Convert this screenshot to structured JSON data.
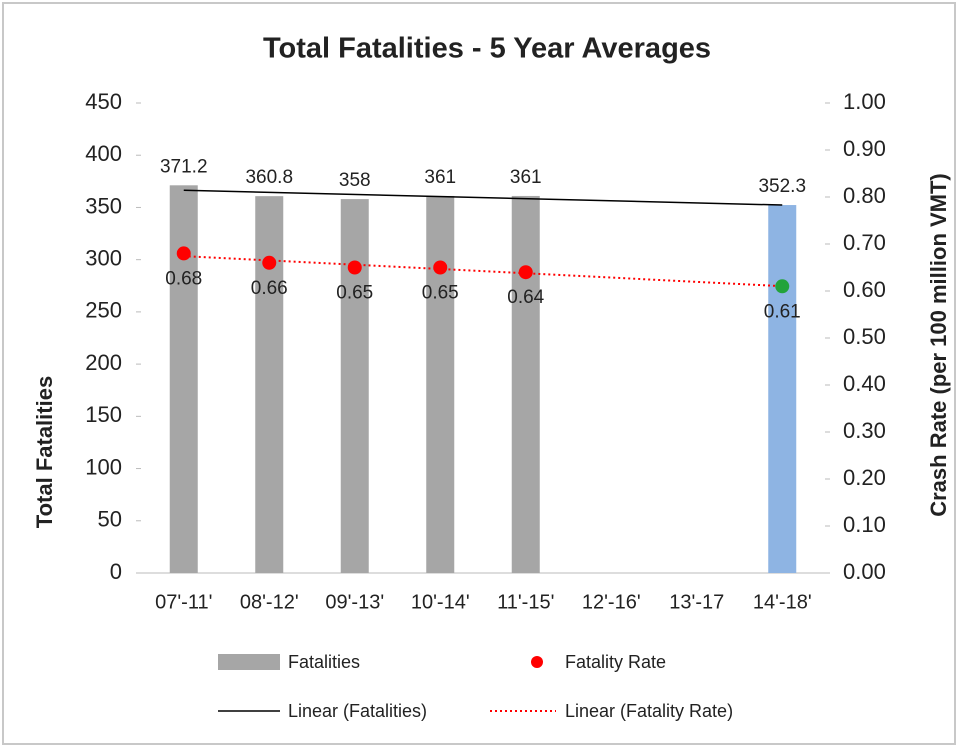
{
  "chart_data": {
    "type": "bar",
    "title": "Total Fatalities - 5 Year Averages",
    "ylabel": "Total Fatalities",
    "y2label": "Crash Rate (per 100 million VMT)",
    "categories": [
      "07'-11'",
      "08'-12'",
      "09'-13'",
      "10'-14'",
      "11'-15'",
      "12'-16'",
      "13'-17",
      "14'-18'"
    ],
    "series": [
      {
        "name": "Fatalities",
        "type": "bar",
        "color": "#a6a6a6",
        "point_colors": [
          "#a6a6a6",
          "#a6a6a6",
          "#a6a6a6",
          "#a6a6a6",
          "#a6a6a6",
          "#a6a6a6",
          "#a6a6a6",
          "#8eb4e3"
        ],
        "values": [
          371.2,
          360.8,
          358,
          361,
          361,
          null,
          null,
          352.3
        ]
      },
      {
        "name": "Fatality Rate",
        "type": "scatter",
        "axis": "y2",
        "color": "#ff0000",
        "point_colors": [
          "#ff0000",
          "#ff0000",
          "#ff0000",
          "#ff0000",
          "#ff0000",
          "#ff0000",
          "#ff0000",
          "#22a33a"
        ],
        "values": [
          0.68,
          0.66,
          0.65,
          0.65,
          0.64,
          null,
          null,
          0.61
        ]
      }
    ],
    "trendlines": [
      {
        "name": "Linear (Fatalities)",
        "series": 0,
        "color": "#000000",
        "dash": false
      },
      {
        "name": "Linear (Fatality Rate)",
        "series": 1,
        "color": "#ff0000",
        "dash": true
      }
    ],
    "ylim": [
      0,
      450
    ],
    "yticks": [
      0,
      50,
      100,
      150,
      200,
      250,
      300,
      350,
      400,
      450
    ],
    "y2lim": [
      0,
      1
    ],
    "y2ticks": [
      {
        "value": 0,
        "label": "0.00"
      },
      {
        "value": 0.1,
        "label": "0.10"
      },
      {
        "value": 0.2,
        "label": "0.20"
      },
      {
        "value": 0.3,
        "label": "0.30"
      },
      {
        "value": 0.4,
        "label": "0.40"
      },
      {
        "value": 0.5,
        "label": "0.50"
      },
      {
        "value": 0.6,
        "label": "0.60"
      },
      {
        "value": 0.7,
        "label": "0.70"
      },
      {
        "value": 0.8,
        "label": "0.80"
      },
      {
        "value": 0.9,
        "label": "0.90"
      },
      {
        "value": 1,
        "label": "1.00"
      }
    ],
    "grid": false,
    "legend": "bottom"
  }
}
